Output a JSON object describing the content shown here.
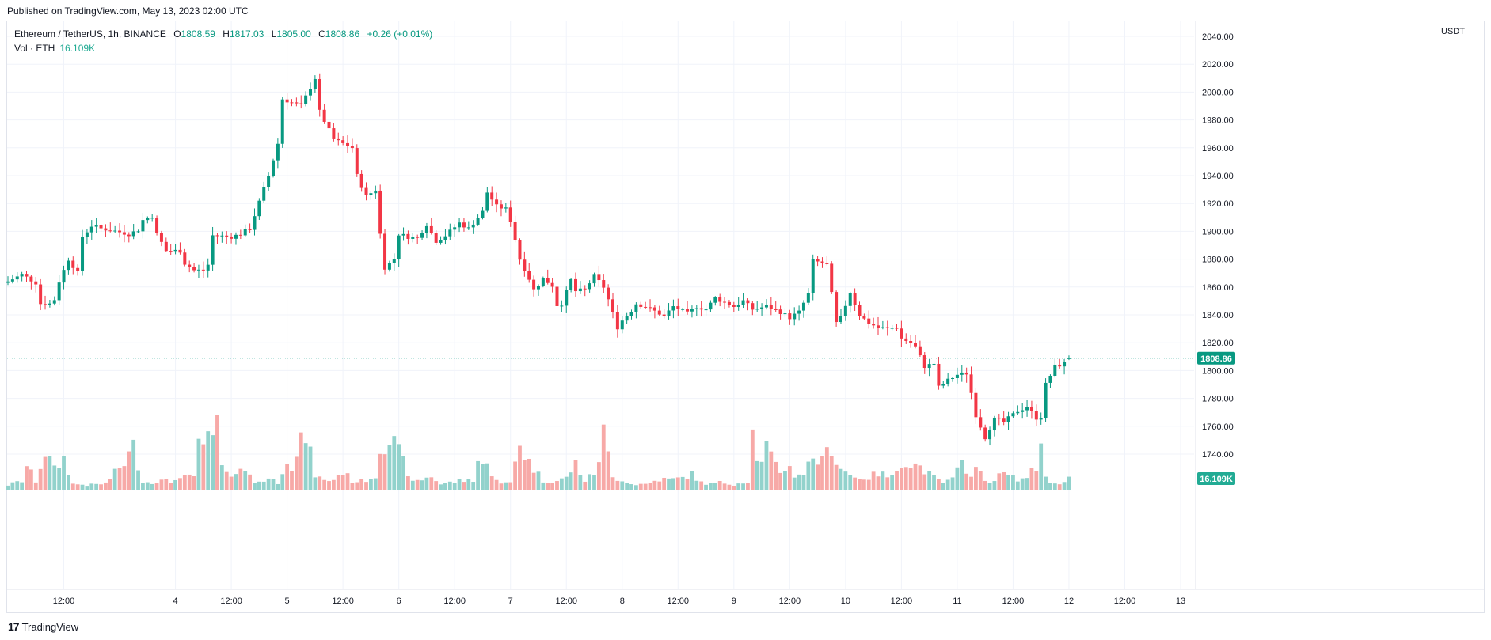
{
  "header": {
    "published": "Published on TradingView.com, May 13, 2023 02:00 UTC"
  },
  "legend": {
    "symbol": "Ethereum / TetherUS, 1h, BINANCE",
    "o_label": "O",
    "o_value": "1808.59",
    "h_label": "H",
    "h_value": "1817.03",
    "l_label": "L",
    "l_value": "1805.00",
    "c_label": "C",
    "c_value": "1808.86",
    "change": "+0.26 (+0.01%)",
    "vol_label": "Vol · ETH",
    "vol_value": "16.109K"
  },
  "price_axis": {
    "currency": "USDT",
    "current_price_label": "1808.86",
    "current_volume_label": "16.109K"
  },
  "footer": {
    "brand": "TradingView"
  },
  "colors": {
    "up": "#089981",
    "down": "#f23645",
    "up_vol": "#92d2cc",
    "down_vol": "#f7a9a7",
    "grid": "#f0f3fa",
    "axis_text": "#131722"
  },
  "chart_data": {
    "type": "candlestick",
    "title": "Ethereum / TetherUS, 1h, BINANCE",
    "ylabel": "USDT",
    "ylim": [
      1726,
      2046
    ],
    "yticks": [
      1740,
      1760,
      1780,
      1800,
      1820,
      1840,
      1860,
      1880,
      1900,
      1920,
      1940,
      1960,
      1980,
      2000,
      2020,
      2040
    ],
    "xticks": [
      {
        "label": "12:00",
        "hour": 12
      },
      {
        "label": "4",
        "hour": 36
      },
      {
        "label": "12:00",
        "hour": 48
      },
      {
        "label": "5",
        "hour": 60
      },
      {
        "label": "12:00",
        "hour": 72
      },
      {
        "label": "6",
        "hour": 84
      },
      {
        "label": "12:00",
        "hour": 96
      },
      {
        "label": "7",
        "hour": 108
      },
      {
        "label": "12:00",
        "hour": 120
      },
      {
        "label": "8",
        "hour": 132
      },
      {
        "label": "12:00",
        "hour": 144
      },
      {
        "label": "9",
        "hour": 156
      },
      {
        "label": "12:00",
        "hour": 168
      },
      {
        "label": "10",
        "hour": 180
      },
      {
        "label": "12:00",
        "hour": 192
      },
      {
        "label": "11",
        "hour": 204
      },
      {
        "label": "12:00",
        "hour": 216
      },
      {
        "label": "12",
        "hour": 228
      },
      {
        "label": "12:00",
        "hour": 240
      },
      {
        "label": "13",
        "hour": 252
      }
    ],
    "first_hour": 0,
    "close_anchors": [
      [
        0,
        1864
      ],
      [
        3,
        1869
      ],
      [
        6,
        1863
      ],
      [
        7,
        1848
      ],
      [
        9,
        1848
      ],
      [
        10,
        1851
      ],
      [
        11,
        1864
      ],
      [
        13,
        1880
      ],
      [
        15,
        1870
      ],
      [
        16,
        1896
      ],
      [
        18,
        1904
      ],
      [
        20,
        1902
      ],
      [
        22,
        1901
      ],
      [
        26,
        1898
      ],
      [
        28,
        1901
      ],
      [
        29,
        1908
      ],
      [
        31,
        1911
      ],
      [
        32,
        1898
      ],
      [
        34,
        1886
      ],
      [
        37,
        1886
      ],
      [
        38,
        1877
      ],
      [
        40,
        1872
      ],
      [
        42,
        1872
      ],
      [
        43,
        1876
      ],
      [
        44,
        1897
      ],
      [
        48,
        1896
      ],
      [
        50,
        1898
      ],
      [
        52,
        1902
      ],
      [
        54,
        1921
      ],
      [
        56,
        1940
      ],
      [
        58,
        1963
      ],
      [
        59,
        1995
      ],
      [
        63,
        1990
      ],
      [
        66,
        2010
      ],
      [
        67,
        1986
      ],
      [
        70,
        1966
      ],
      [
        74,
        1960
      ],
      [
        75,
        1940
      ],
      [
        77,
        1925
      ],
      [
        79,
        1930
      ],
      [
        80,
        1898
      ],
      [
        81,
        1874
      ],
      [
        83,
        1880
      ],
      [
        84,
        1898
      ],
      [
        86,
        1896
      ],
      [
        88,
        1895
      ],
      [
        90,
        1905
      ],
      [
        92,
        1893
      ],
      [
        94,
        1897
      ],
      [
        97,
        1906
      ],
      [
        99,
        1902
      ],
      [
        101,
        1910
      ],
      [
        102,
        1914
      ],
      [
        103,
        1928
      ],
      [
        105,
        1918
      ],
      [
        107,
        1916
      ],
      [
        108,
        1908
      ],
      [
        110,
        1880
      ],
      [
        112,
        1866
      ],
      [
        113,
        1858
      ],
      [
        115,
        1866
      ],
      [
        117,
        1861
      ],
      [
        118,
        1847
      ],
      [
        119,
        1848
      ],
      [
        121,
        1865
      ],
      [
        122,
        1857
      ],
      [
        124,
        1858
      ],
      [
        126,
        1868
      ],
      [
        128,
        1860
      ],
      [
        129,
        1851
      ],
      [
        131,
        1831
      ],
      [
        132,
        1836
      ],
      [
        134,
        1843
      ],
      [
        135,
        1848
      ],
      [
        137,
        1846
      ],
      [
        140,
        1841
      ],
      [
        141,
        1839
      ],
      [
        143,
        1846
      ],
      [
        146,
        1841
      ],
      [
        148,
        1846
      ],
      [
        150,
        1844
      ],
      [
        152,
        1852
      ],
      [
        154,
        1849
      ],
      [
        156,
        1846
      ],
      [
        158,
        1850
      ],
      [
        160,
        1844
      ],
      [
        163,
        1846
      ],
      [
        166,
        1842
      ],
      [
        168,
        1838
      ],
      [
        170,
        1842
      ],
      [
        172,
        1855
      ],
      [
        173,
        1879
      ],
      [
        176,
        1876
      ],
      [
        178,
        1834
      ],
      [
        179,
        1838
      ],
      [
        181,
        1856
      ],
      [
        183,
        1840
      ],
      [
        185,
        1834
      ],
      [
        187,
        1831
      ],
      [
        189,
        1830
      ],
      [
        191,
        1831
      ],
      [
        192,
        1823
      ],
      [
        194,
        1820
      ],
      [
        195,
        1817
      ],
      [
        197,
        1803
      ],
      [
        199,
        1805
      ],
      [
        200,
        1788
      ],
      [
        202,
        1793
      ],
      [
        204,
        1797
      ],
      [
        206,
        1798
      ],
      [
        207,
        1784
      ],
      [
        208,
        1768
      ],
      [
        210,
        1752
      ],
      [
        212,
        1765
      ],
      [
        214,
        1763
      ],
      [
        217,
        1771
      ],
      [
        219,
        1774
      ],
      [
        221,
        1766
      ],
      [
        222,
        1767
      ],
      [
        223,
        1790
      ],
      [
        225,
        1803
      ],
      [
        227,
        1805
      ],
      [
        228,
        1809
      ]
    ],
    "volume_anchors": [
      [
        0,
        7
      ],
      [
        3,
        12
      ],
      [
        4,
        31
      ],
      [
        6,
        12
      ],
      [
        8,
        49
      ],
      [
        9,
        38
      ],
      [
        10,
        26
      ],
      [
        12,
        40
      ],
      [
        14,
        8
      ],
      [
        18,
        7
      ],
      [
        21,
        9
      ],
      [
        25,
        35
      ],
      [
        27,
        55
      ],
      [
        29,
        12
      ],
      [
        31,
        9
      ],
      [
        33,
        17
      ],
      [
        35,
        8
      ],
      [
        37,
        20
      ],
      [
        40,
        15
      ],
      [
        41,
        60
      ],
      [
        43,
        62
      ],
      [
        44,
        60
      ],
      [
        45,
        93
      ],
      [
        46,
        28
      ],
      [
        48,
        14
      ],
      [
        50,
        36
      ],
      [
        51,
        26
      ],
      [
        53,
        10
      ],
      [
        56,
        15
      ],
      [
        58,
        10
      ],
      [
        60,
        44
      ],
      [
        61,
        28
      ],
      [
        62,
        40
      ],
      [
        63,
        60
      ],
      [
        64,
        70
      ],
      [
        66,
        20
      ],
      [
        68,
        12
      ],
      [
        70,
        14
      ],
      [
        72,
        24
      ],
      [
        74,
        12
      ],
      [
        76,
        12
      ],
      [
        79,
        18
      ],
      [
        80,
        58
      ],
      [
        82,
        64
      ],
      [
        83,
        58
      ],
      [
        85,
        36
      ],
      [
        87,
        10
      ],
      [
        89,
        14
      ],
      [
        91,
        18
      ],
      [
        93,
        8
      ],
      [
        97,
        12
      ],
      [
        100,
        14
      ],
      [
        101,
        38
      ],
      [
        103,
        30
      ],
      [
        106,
        8
      ],
      [
        108,
        10
      ],
      [
        110,
        65
      ],
      [
        111,
        44
      ],
      [
        113,
        28
      ],
      [
        115,
        12
      ],
      [
        118,
        12
      ],
      [
        120,
        16
      ],
      [
        122,
        34
      ],
      [
        124,
        12
      ],
      [
        126,
        22
      ],
      [
        127,
        42
      ],
      [
        128,
        72
      ],
      [
        130,
        16
      ],
      [
        132,
        14
      ],
      [
        134,
        8
      ],
      [
        137,
        8
      ],
      [
        140,
        14
      ],
      [
        143,
        14
      ],
      [
        145,
        16
      ],
      [
        147,
        20
      ],
      [
        149,
        10
      ],
      [
        151,
        8
      ],
      [
        153,
        10
      ],
      [
        156,
        8
      ],
      [
        159,
        12
      ],
      [
        160,
        72
      ],
      [
        161,
        44
      ],
      [
        162,
        32
      ],
      [
        163,
        56
      ],
      [
        164,
        40
      ],
      [
        166,
        24
      ],
      [
        167,
        30
      ],
      [
        168,
        28
      ],
      [
        169,
        20
      ],
      [
        171,
        22
      ],
      [
        173,
        42
      ],
      [
        175,
        36
      ],
      [
        177,
        58
      ],
      [
        178,
        36
      ],
      [
        180,
        24
      ],
      [
        182,
        16
      ],
      [
        185,
        16
      ],
      [
        187,
        22
      ],
      [
        190,
        16
      ],
      [
        192,
        38
      ],
      [
        194,
        34
      ],
      [
        196,
        30
      ],
      [
        199,
        16
      ],
      [
        201,
        10
      ],
      [
        203,
        14
      ],
      [
        205,
        34
      ],
      [
        207,
        22
      ],
      [
        208,
        28
      ],
      [
        210,
        12
      ],
      [
        212,
        14
      ],
      [
        214,
        22
      ],
      [
        216,
        16
      ],
      [
        218,
        14
      ],
      [
        219,
        18
      ],
      [
        221,
        28
      ],
      [
        222,
        58
      ],
      [
        223,
        22
      ],
      [
        224,
        8
      ],
      [
        226,
        10
      ],
      [
        228,
        16
      ]
    ],
    "volume_max": 95,
    "last_candle": {
      "open": 1808.59,
      "high": 1817.03,
      "low": 1805.0,
      "close": 1808.86,
      "volume": "16.109K"
    }
  }
}
